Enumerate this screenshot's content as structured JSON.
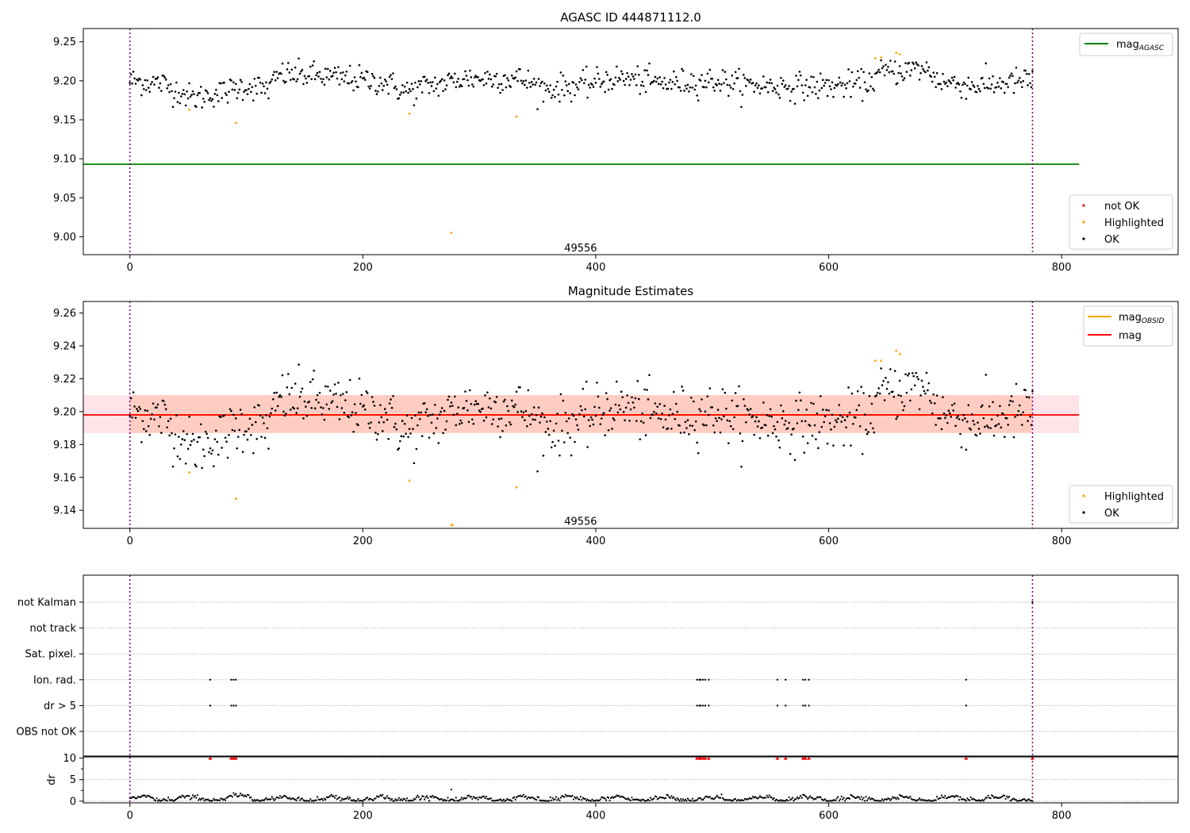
{
  "chart_data": [
    {
      "type": "scatter",
      "title": "AGASC ID 444871112.0",
      "xlabel": "",
      "ylabel": "",
      "xlim": [
        -40,
        900
      ],
      "ylim": [
        8.977,
        9.267
      ],
      "x_ticks": [
        "0",
        "200",
        "400",
        "600",
        "800"
      ],
      "x_tick_values": [
        0,
        200,
        400,
        600,
        800
      ],
      "y_ticks": [
        "9.00",
        "9.05",
        "9.10",
        "9.15",
        "9.20",
        "9.25"
      ],
      "y_tick_values": [
        9.0,
        9.05,
        9.1,
        9.15,
        9.2,
        9.25
      ],
      "obsid_annotation": {
        "text": "49556",
        "x": 387,
        "y": 8.985
      },
      "obs_boundaries": [
        0,
        775
      ],
      "mag_agasc_line": {
        "y": 9.093,
        "x_range": [
          -40,
          815
        ],
        "color": "#008000"
      },
      "legend_line": {
        "name": "mag",
        "subscript": "AGASC",
        "placement": "top-right"
      },
      "legend_scatter": {
        "placement": "bottom-right",
        "entries": [
          {
            "name": "not OK",
            "color": "#ff0000"
          },
          {
            "name": "Highlighted",
            "color": "#ffa500"
          },
          {
            "name": "OK",
            "color": "#000000"
          }
        ]
      },
      "series": [
        {
          "name": "Highlighted",
          "color": "#ffa500",
          "points": [
            [
              51,
              9.163
            ],
            [
              91,
              9.146
            ],
            [
              240,
              9.158
            ],
            [
              276,
              9.005
            ],
            [
              332,
              9.154
            ],
            [
              640,
              9.229
            ],
            [
              645,
              9.23
            ],
            [
              658,
              9.236
            ],
            [
              661,
              9.234
            ]
          ]
        }
      ]
    },
    {
      "type": "scatter",
      "title": "Magnitude Estimates",
      "xlabel": "",
      "ylabel": "",
      "xlim": [
        -40,
        900
      ],
      "ylim": [
        9.129,
        9.267
      ],
      "x_ticks": [
        "0",
        "200",
        "400",
        "600",
        "800"
      ],
      "x_tick_values": [
        0,
        200,
        400,
        600,
        800
      ],
      "y_ticks": [
        "9.14",
        "9.16",
        "9.18",
        "9.20",
        "9.22",
        "9.24",
        "9.26"
      ],
      "y_tick_values": [
        9.14,
        9.16,
        9.18,
        9.2,
        9.22,
        9.24,
        9.26
      ],
      "obsid_annotation": {
        "text": "49556",
        "x": 387,
        "y": 9.133
      },
      "obs_boundaries": [
        0,
        775
      ],
      "mag_line": {
        "y": 9.198,
        "x_range": [
          -40,
          815
        ],
        "color": "#ff0000"
      },
      "mag_band": {
        "y_range": [
          9.187,
          9.21
        ],
        "x_range": [
          -40,
          815
        ],
        "color": "#ffc0cb"
      },
      "mag_obsid_line": {
        "y": 9.198,
        "x_range": [
          0,
          775
        ],
        "color": "#ffa500"
      },
      "mag_obsid_band": {
        "y_range": [
          9.187,
          9.21
        ],
        "x_range": [
          0,
          775
        ],
        "color": "#ffa07a"
      },
      "legend_lines": {
        "placement": "top-right",
        "entries": [
          {
            "name": "mag",
            "subscript": "OBSID",
            "color": "#ffa500"
          },
          {
            "name": "mag",
            "subscript": "",
            "color": "#ff0000"
          }
        ]
      },
      "legend_scatter": {
        "placement": "bottom-right",
        "entries": [
          {
            "name": "Highlighted",
            "color": "#ffa500"
          },
          {
            "name": "OK",
            "color": "#000000"
          }
        ]
      },
      "series": [
        {
          "name": "Highlighted",
          "color": "#ffa500",
          "points": [
            [
              51,
              9.163
            ],
            [
              91,
              9.147
            ],
            [
              240,
              9.158
            ],
            [
              276,
              9.131
            ],
            [
              277,
              9.131
            ],
            [
              332,
              9.154
            ],
            [
              640,
              9.231
            ],
            [
              645,
              9.231
            ],
            [
              658,
              9.237
            ],
            [
              661,
              9.235
            ]
          ]
        }
      ]
    },
    {
      "type": "scatter",
      "title": "",
      "xlabel": "",
      "ylabel": "",
      "xlim": [
        -40,
        900
      ],
      "x_ticks": [
        "0",
        "200",
        "400",
        "600",
        "800"
      ],
      "x_tick_values": [
        0,
        200,
        400,
        600,
        800
      ],
      "obs_boundaries": [
        0,
        775
      ],
      "flag_rows": [
        "not Kalman",
        "not track",
        "Sat. pixel.",
        "Ion. rad.",
        "dr > 5",
        "OBS not OK"
      ],
      "flags": {
        "Ion. rad.": [
          69,
          87,
          89,
          91,
          487,
          489,
          490,
          492,
          494,
          497,
          556,
          563,
          578,
          580,
          583,
          718
        ],
        "dr > 5": [
          69,
          87,
          89,
          91,
          487,
          489,
          490,
          492,
          494,
          497,
          556,
          563,
          578,
          580,
          583,
          718
        ],
        "not Kalman": [
          775
        ]
      }
    },
    {
      "type": "scatter",
      "title": "",
      "xlabel": "",
      "ylabel": "dr",
      "xlim": [
        -40,
        900
      ],
      "ylim": [
        -0.4,
        10.3
      ],
      "x_ticks": [
        "0",
        "200",
        "400",
        "600",
        "800"
      ],
      "x_tick_values": [
        0,
        200,
        400,
        600,
        800
      ],
      "y_ticks": [
        "0",
        "5",
        "10"
      ],
      "y_tick_values": [
        0,
        5,
        10
      ],
      "obs_boundaries": [
        0,
        775
      ],
      "dr_outliers": [
        [
          276,
          2.7
        ]
      ],
      "clipped_markers": {
        "color": "#ff0000",
        "y": 10,
        "x": [
          69,
          87,
          89,
          91,
          487,
          489,
          490,
          492,
          494,
          497,
          556,
          563,
          578,
          580,
          583,
          718,
          775
        ]
      }
    }
  ]
}
